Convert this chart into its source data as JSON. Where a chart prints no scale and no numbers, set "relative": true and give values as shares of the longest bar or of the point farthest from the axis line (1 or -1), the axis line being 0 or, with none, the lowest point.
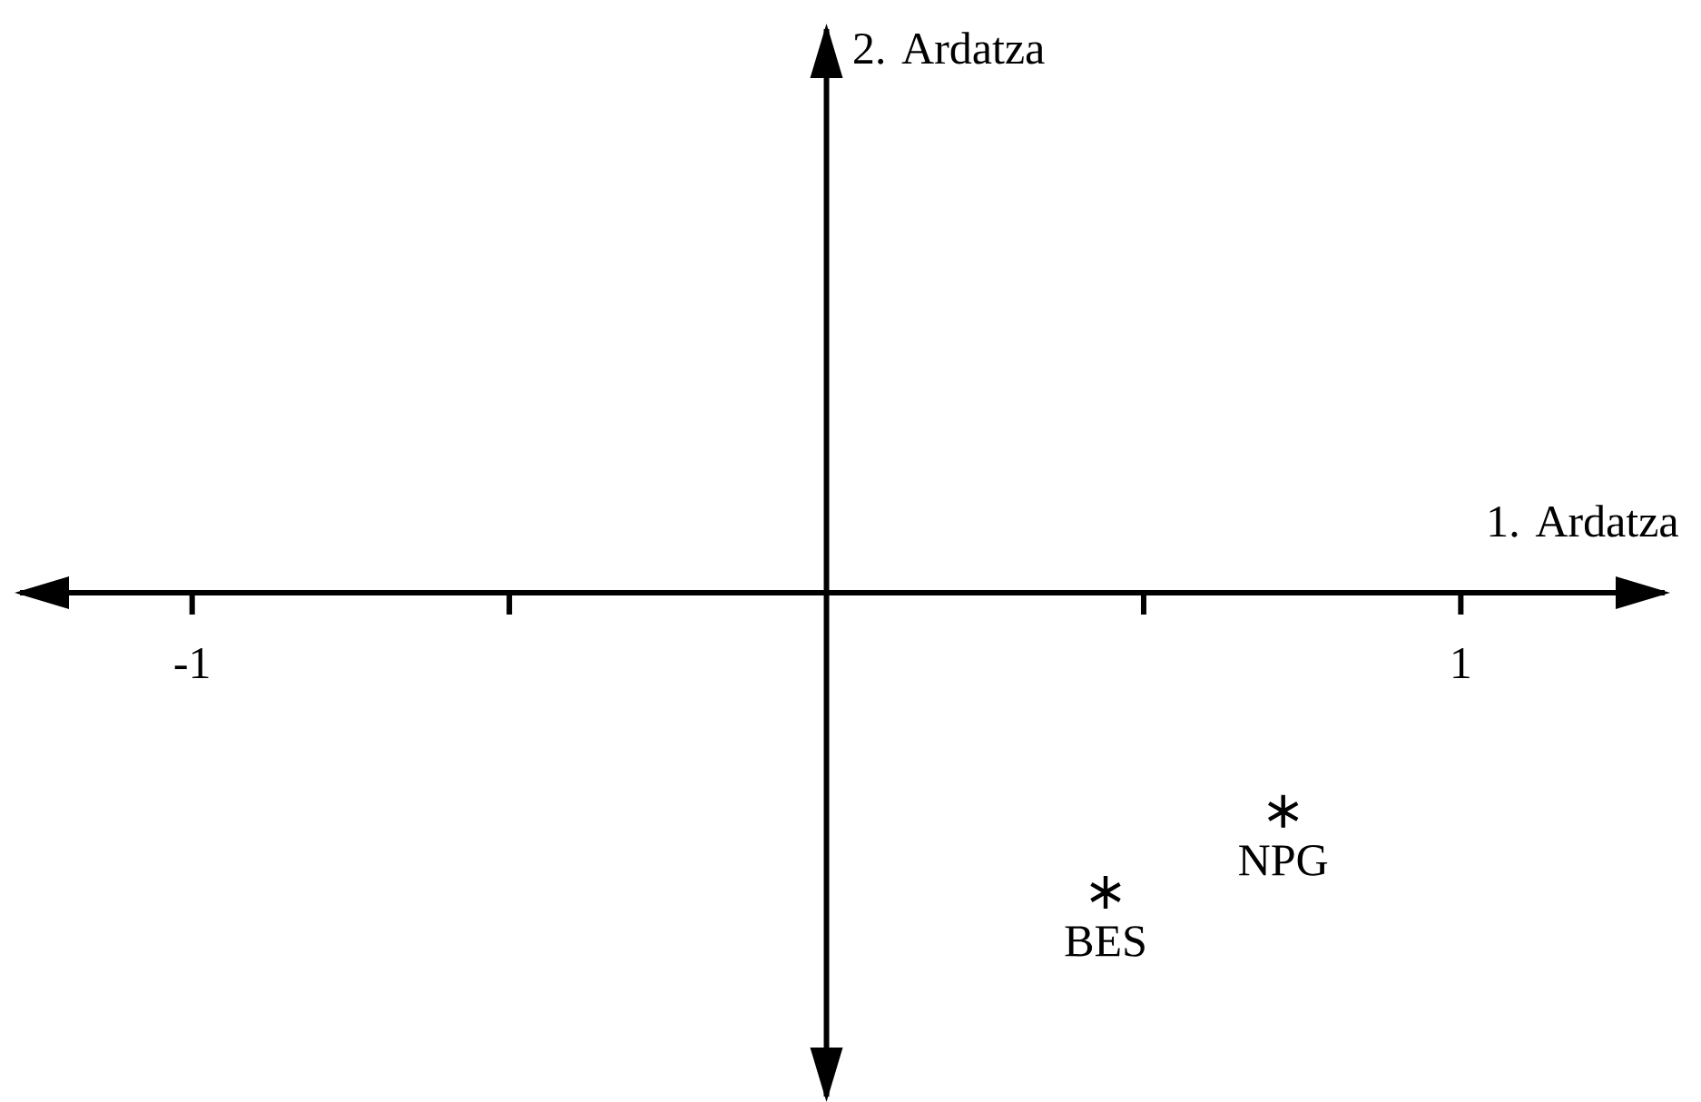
{
  "chart_data": {
    "type": "scatter",
    "xlabel": "1. Ardatza",
    "relative": true,
    "xlim": [
      -1.28,
      1.33
    ],
    "xticks": [
      {
        "value": -1,
        "label": "-1"
      },
      {
        "value": -0.5,
        "label": null
      },
      {
        "value": 0.5,
        "label": null
      },
      {
        "value": 1,
        "label": "1"
      }
    ],
    "marker": "cross",
    "series": [
      {
        "color": "#000000",
        "x": [
          0.44,
          0.72
        ],
        "values": [
          -1,
          -0.73
        ]
      }
    ],
    "annotations": [
      {
        "text": "BES",
        "x": 0.44,
        "y": -1
      },
      {
        "text": "NPG",
        "x": 0.72,
        "y": -0.73
      },
      "2. Ardatza"
    ]
  }
}
